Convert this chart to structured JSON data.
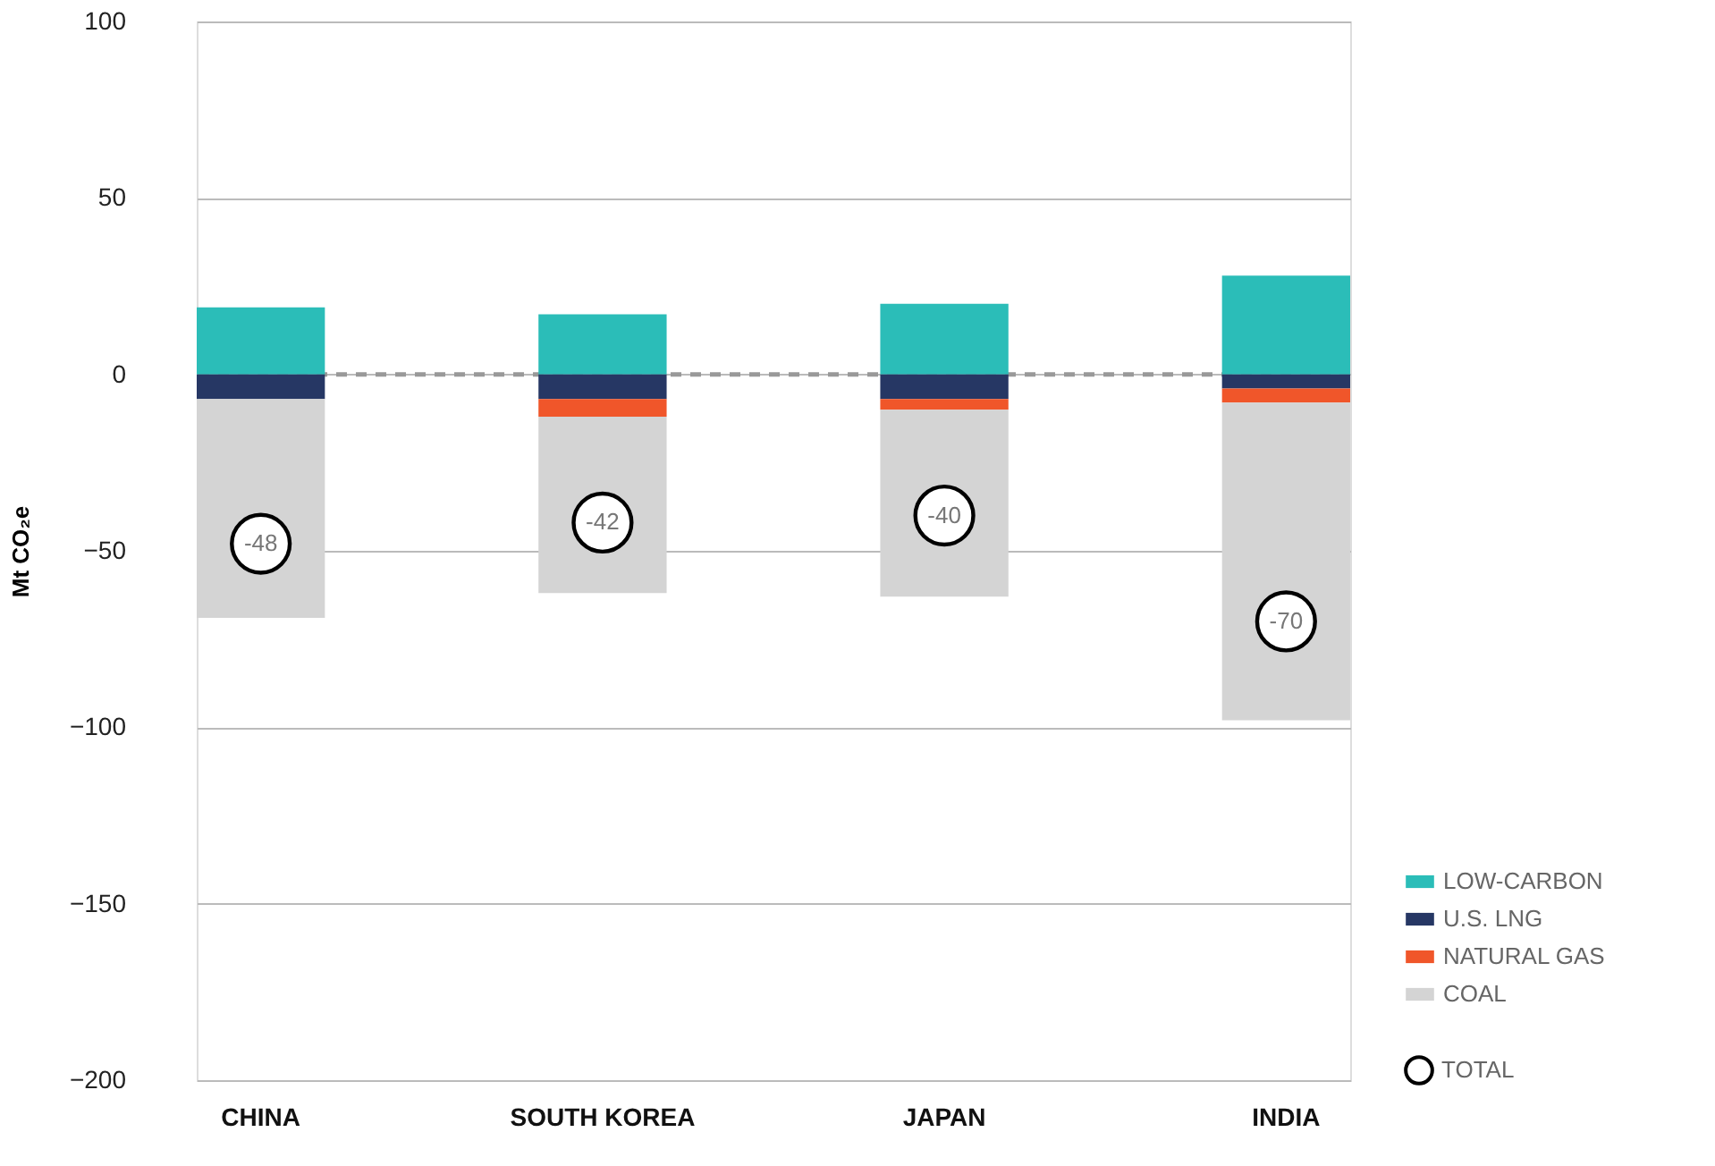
{
  "chart_data": {
    "type": "bar",
    "stacked": true,
    "ylabel": "Mt CO₂e",
    "categories": [
      "CHINA",
      "SOUTH KOREA",
      "JAPAN",
      "INDIA"
    ],
    "ylim": [
      -200,
      100
    ],
    "yticks": [
      -200,
      -150,
      -100,
      -50,
      0,
      50,
      100
    ],
    "grid": "y",
    "legend": "bottom right",
    "series": [
      {
        "name": "LOW-CARBON",
        "color": "#2bbdb8",
        "values": [
          19,
          17,
          20,
          28
        ]
      },
      {
        "name": "U.S. LNG",
        "color": "#263764",
        "values": [
          -7,
          -7,
          -7,
          -4
        ]
      },
      {
        "name": "NATURAL GAS",
        "color": "#f0562a",
        "values": [
          null,
          -5,
          -3,
          -4
        ]
      },
      {
        "name": "COAL",
        "color": "#d4d4d4",
        "values": [
          -62,
          -50,
          -53,
          -90
        ]
      },
      {
        "name": "TOTAL",
        "type": "scatter",
        "marker": "circle",
        "color": "#000000",
        "values": [
          -48,
          -42,
          -40,
          -70
        ],
        "value_labels": [
          "-48",
          "-42",
          "-40",
          "-70"
        ]
      }
    ],
    "ref_lines": [
      {
        "axis": "y",
        "value": 0,
        "color": "#999999",
        "line_style": "dashed"
      }
    ]
  }
}
